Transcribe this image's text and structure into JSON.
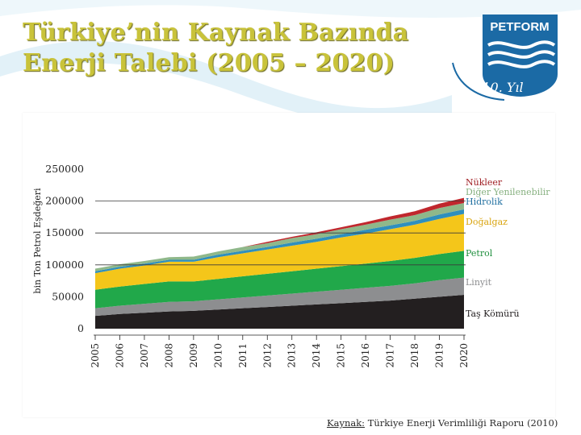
{
  "slide": {
    "title_line1": "Türkiye’nin Kaynak Bazında",
    "title_line2": "Enerji Talebi (2005 – 2020)",
    "logo_text": "PETFORM",
    "logo_anniversary": "10. Yıl",
    "source_label": "Kaynak:",
    "source_text": " Türkiye Enerji Verimliliği Raporu (2010)",
    "colors": {
      "title": "#c9c33a",
      "accent_light": "#d9eef7",
      "logo_blue": "#1b6aa5"
    }
  },
  "chart_data": {
    "type": "area",
    "stacked": true,
    "ylabel": "bin Ton Petrol Eşdeğeri",
    "xlabel": "",
    "ylim": [
      0,
      250000
    ],
    "yticks": [
      "250000",
      "200000",
      "150000",
      "100000",
      "50000",
      "0"
    ],
    "x": [
      "2005",
      "2006",
      "2007",
      "2008",
      "2009",
      "2010",
      "2011",
      "2012",
      "2013",
      "2014",
      "2015",
      "2016",
      "2017",
      "2018",
      "2019",
      "2020"
    ],
    "gridlines": [
      200000,
      150000,
      100000
    ],
    "legend_position": "right, inline labels",
    "series": [
      {
        "name": "Taş Kömürü",
        "color": "#231f20",
        "values": [
          20000,
          23000,
          25000,
          27000,
          28000,
          30000,
          32000,
          34000,
          36000,
          38000,
          40000,
          42000,
          44000,
          47000,
          50000,
          53000
        ]
      },
      {
        "name": "Linyit",
        "color": "#8d8e90",
        "values": [
          12000,
          13000,
          14000,
          15000,
          15000,
          16000,
          17000,
          18000,
          19000,
          20000,
          21000,
          22000,
          23000,
          24000,
          26000,
          27000
        ]
      },
      {
        "name": "Petrol",
        "color": "#21a84a",
        "values": [
          29000,
          30000,
          31000,
          32000,
          31000,
          32000,
          33000,
          34000,
          35000,
          36000,
          37000,
          38000,
          39000,
          40000,
          41000,
          42000
        ]
      },
      {
        "name": "Doğalgaz",
        "color": "#f4c61a",
        "values": [
          26000,
          28000,
          29000,
          31000,
          31000,
          34000,
          36000,
          38000,
          40000,
          42000,
          45000,
          47000,
          50000,
          52000,
          55000,
          58000
        ]
      },
      {
        "name": "Hidrolik",
        "color": "#2f8fbd",
        "values": [
          3000,
          3000,
          3000,
          3000,
          3000,
          4000,
          4000,
          4000,
          5000,
          5000,
          5000,
          6000,
          6000,
          6000,
          7000,
          7000
        ]
      },
      {
        "name": "Diğer Yenilenebilir",
        "color": "#8fb88a",
        "values": [
          4000,
          4000,
          4000,
          4000,
          5000,
          5000,
          6000,
          6000,
          7000,
          7000,
          8000,
          8000,
          9000,
          9000,
          10000,
          10000
        ]
      },
      {
        "name": "Nükleer",
        "color": "#c0272d",
        "values": [
          0,
          0,
          0,
          0,
          0,
          0,
          0,
          2000,
          2000,
          3000,
          3000,
          4000,
          5000,
          6000,
          7000,
          8000
        ]
      }
    ]
  }
}
